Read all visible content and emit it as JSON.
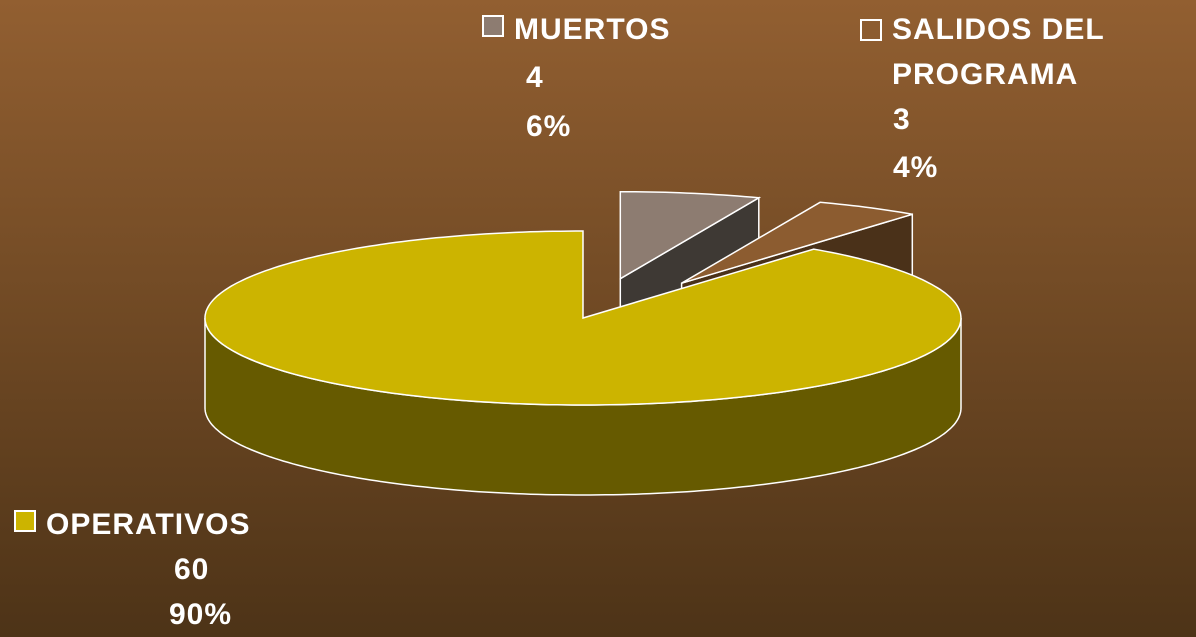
{
  "chart_data": {
    "type": "pie",
    "three_d": true,
    "categories": [
      "OPERATIVOS",
      "MUERTOS",
      "SALIDOS DEL PROGRAMA"
    ],
    "values": [
      60,
      4,
      3
    ],
    "percentages": [
      90,
      6,
      4
    ],
    "percent_labels": [
      "90%",
      "6%",
      "4%"
    ],
    "colors": [
      "#ccb400",
      "#8d7c71",
      "#8c5c30"
    ],
    "side_colors": [
      "#665a00",
      "#3e3934",
      "#4a3119"
    ],
    "exploded": [
      false,
      true,
      true
    ]
  }
}
